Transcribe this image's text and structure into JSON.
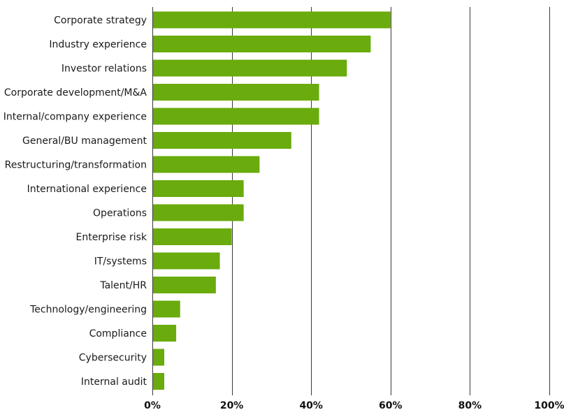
{
  "chart_data": {
    "type": "bar",
    "orientation": "horizontal",
    "categories": [
      "Corporate strategy",
      "Industry experience",
      "Investor relations",
      "Corporate development/M&A",
      "Internal/company experience",
      "General/BU management",
      "Restructuring/transformation",
      "International experience",
      "Operations",
      "Enterprise risk",
      "IT/systems",
      "Talent/HR",
      "Technology/engineering",
      "Compliance",
      "Cybersecurity",
      "Internal audit"
    ],
    "values": [
      60,
      55,
      49,
      42,
      42,
      35,
      27,
      23,
      23,
      20,
      17,
      16,
      7,
      6,
      3,
      3
    ],
    "xlim": [
      0,
      100
    ],
    "xticks": [
      0,
      20,
      40,
      60,
      80,
      100
    ],
    "xtick_labels": [
      "0%",
      "20%",
      "40%",
      "60%",
      "80%",
      "100%"
    ],
    "title": "",
    "xlabel": "",
    "ylabel": "",
    "grid": "vertical",
    "legend": "none",
    "bar_color": "#6aab0d",
    "grid_color": "#3a3a3a"
  }
}
